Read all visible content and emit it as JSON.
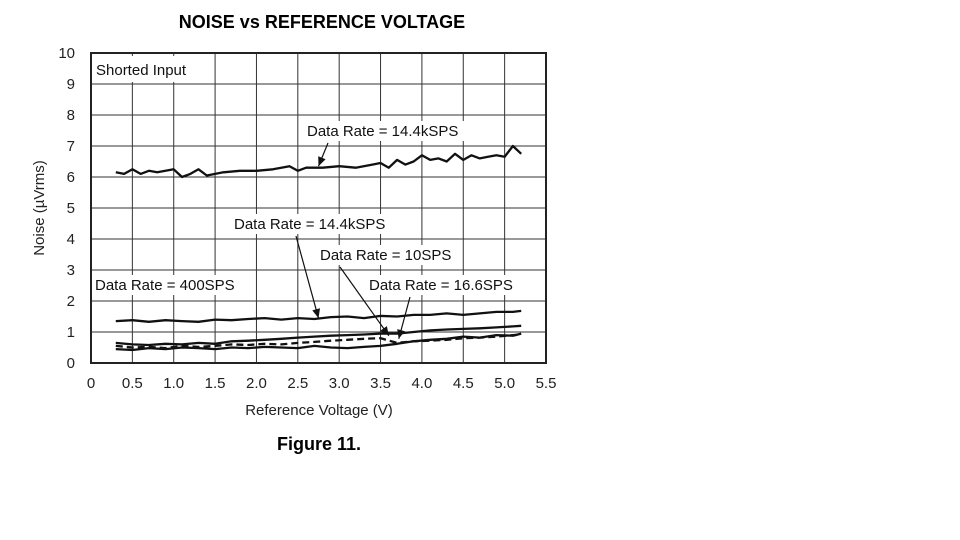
{
  "chart_data": {
    "type": "line",
    "title": "NOISE vs REFERENCE VOLTAGE",
    "xlabel": "Reference Voltage (V)",
    "ylabel": "Noise (µVrms)",
    "xlim": [
      0,
      5.5
    ],
    "ylim": [
      0,
      10
    ],
    "xticks": [
      "0",
      "0.5",
      "1.0",
      "1.5",
      "2.0",
      "2.5",
      "3.0",
      "3.5",
      "4.0",
      "4.5",
      "5.0",
      "5.5"
    ],
    "yticks": [
      "0",
      "1",
      "2",
      "3",
      "4",
      "5",
      "6",
      "7",
      "8",
      "9",
      "10"
    ],
    "grid": true,
    "inset_label": "Shorted Input",
    "caption": "Figure 11.",
    "annotations": [
      "Data Rate = 14.4kSPS",
      "Data Rate = 14.4kSPS",
      "Data Rate = 10SPS",
      "Data Rate = 400SPS",
      "Data Rate = 16.6SPS"
    ],
    "series": [
      {
        "name": "Data Rate = 14.4kSPS",
        "style": "solid",
        "x": [
          0.3,
          0.4,
          0.5,
          0.6,
          0.7,
          0.8,
          0.9,
          1.0,
          1.1,
          1.2,
          1.3,
          1.4,
          1.5,
          1.6,
          1.8,
          2.0,
          2.2,
          2.4,
          2.5,
          2.6,
          2.8,
          3.0,
          3.2,
          3.4,
          3.5,
          3.6,
          3.7,
          3.8,
          3.9,
          4.0,
          4.1,
          4.2,
          4.3,
          4.4,
          4.5,
          4.6,
          4.7,
          4.8,
          4.9,
          5.0,
          5.1,
          5.2
        ],
        "y": [
          6.15,
          6.1,
          6.25,
          6.1,
          6.2,
          6.15,
          6.2,
          6.25,
          6.0,
          6.1,
          6.25,
          6.05,
          6.1,
          6.15,
          6.2,
          6.2,
          6.25,
          6.35,
          6.2,
          6.3,
          6.3,
          6.35,
          6.3,
          6.4,
          6.45,
          6.3,
          6.55,
          6.4,
          6.5,
          6.7,
          6.55,
          6.6,
          6.5,
          6.75,
          6.55,
          6.7,
          6.6,
          6.65,
          6.7,
          6.65,
          7.0,
          6.75
        ]
      },
      {
        "name": "Data Rate = 400SPS",
        "style": "solid",
        "x": [
          0.3,
          0.5,
          0.7,
          0.9,
          1.1,
          1.3,
          1.5,
          1.7,
          1.9,
          2.1,
          2.3,
          2.5,
          2.7,
          2.9,
          3.1,
          3.3,
          3.5,
          3.7,
          3.9,
          4.1,
          4.3,
          4.5,
          4.7,
          4.9,
          5.1,
          5.2
        ],
        "y": [
          1.35,
          1.38,
          1.33,
          1.38,
          1.35,
          1.33,
          1.4,
          1.38,
          1.42,
          1.45,
          1.4,
          1.45,
          1.42,
          1.48,
          1.5,
          1.45,
          1.52,
          1.5,
          1.55,
          1.55,
          1.6,
          1.55,
          1.6,
          1.65,
          1.65,
          1.68
        ]
      },
      {
        "name": "Data Rate = 14.4kSPS",
        "style": "solid",
        "x": [
          0.3,
          0.5,
          0.7,
          0.9,
          1.1,
          1.3,
          1.5,
          1.7,
          1.9,
          2.1,
          2.3,
          2.5,
          2.7,
          2.9,
          3.1,
          3.3,
          3.5,
          3.7,
          3.9,
          4.1,
          4.3,
          4.5,
          4.7,
          4.9,
          5.1,
          5.2
        ],
        "y": [
          0.65,
          0.6,
          0.58,
          0.62,
          0.6,
          0.65,
          0.62,
          0.7,
          0.72,
          0.75,
          0.78,
          0.82,
          0.85,
          0.88,
          0.9,
          0.92,
          0.95,
          0.95,
          1.0,
          1.05,
          1.08,
          1.1,
          1.12,
          1.15,
          1.18,
          1.2
        ]
      },
      {
        "name": "Data Rate = 10SPS",
        "style": "solid",
        "x": [
          0.3,
          0.5,
          0.7,
          0.9,
          1.1,
          1.3,
          1.5,
          1.7,
          1.9,
          2.1,
          2.3,
          2.5,
          2.7,
          2.9,
          3.1,
          3.3,
          3.5,
          3.7,
          3.9,
          4.1,
          4.3,
          4.5,
          4.7,
          4.9,
          5.1,
          5.2
        ],
        "y": [
          0.45,
          0.42,
          0.48,
          0.45,
          0.5,
          0.48,
          0.45,
          0.5,
          0.48,
          0.52,
          0.5,
          0.48,
          0.55,
          0.5,
          0.48,
          0.52,
          0.55,
          0.62,
          0.7,
          0.75,
          0.78,
          0.85,
          0.82,
          0.9,
          0.88,
          0.95
        ]
      },
      {
        "name": "Data Rate = 16.6SPS",
        "style": "dashed",
        "x": [
          0.3,
          0.5,
          0.7,
          0.9,
          1.1,
          1.3,
          1.5,
          1.7,
          1.9,
          2.1,
          2.3,
          2.5,
          2.7,
          2.9,
          3.1,
          3.3,
          3.5,
          3.7,
          3.9,
          4.1,
          4.3,
          4.5,
          4.7,
          4.9,
          5.1,
          5.2
        ],
        "y": [
          0.55,
          0.5,
          0.52,
          0.48,
          0.55,
          0.52,
          0.55,
          0.6,
          0.58,
          0.62,
          0.6,
          0.65,
          0.68,
          0.72,
          0.75,
          0.78,
          0.8,
          0.65,
          0.7,
          0.72,
          0.75,
          0.8,
          0.82,
          0.85,
          0.9,
          0.92
        ]
      }
    ]
  }
}
